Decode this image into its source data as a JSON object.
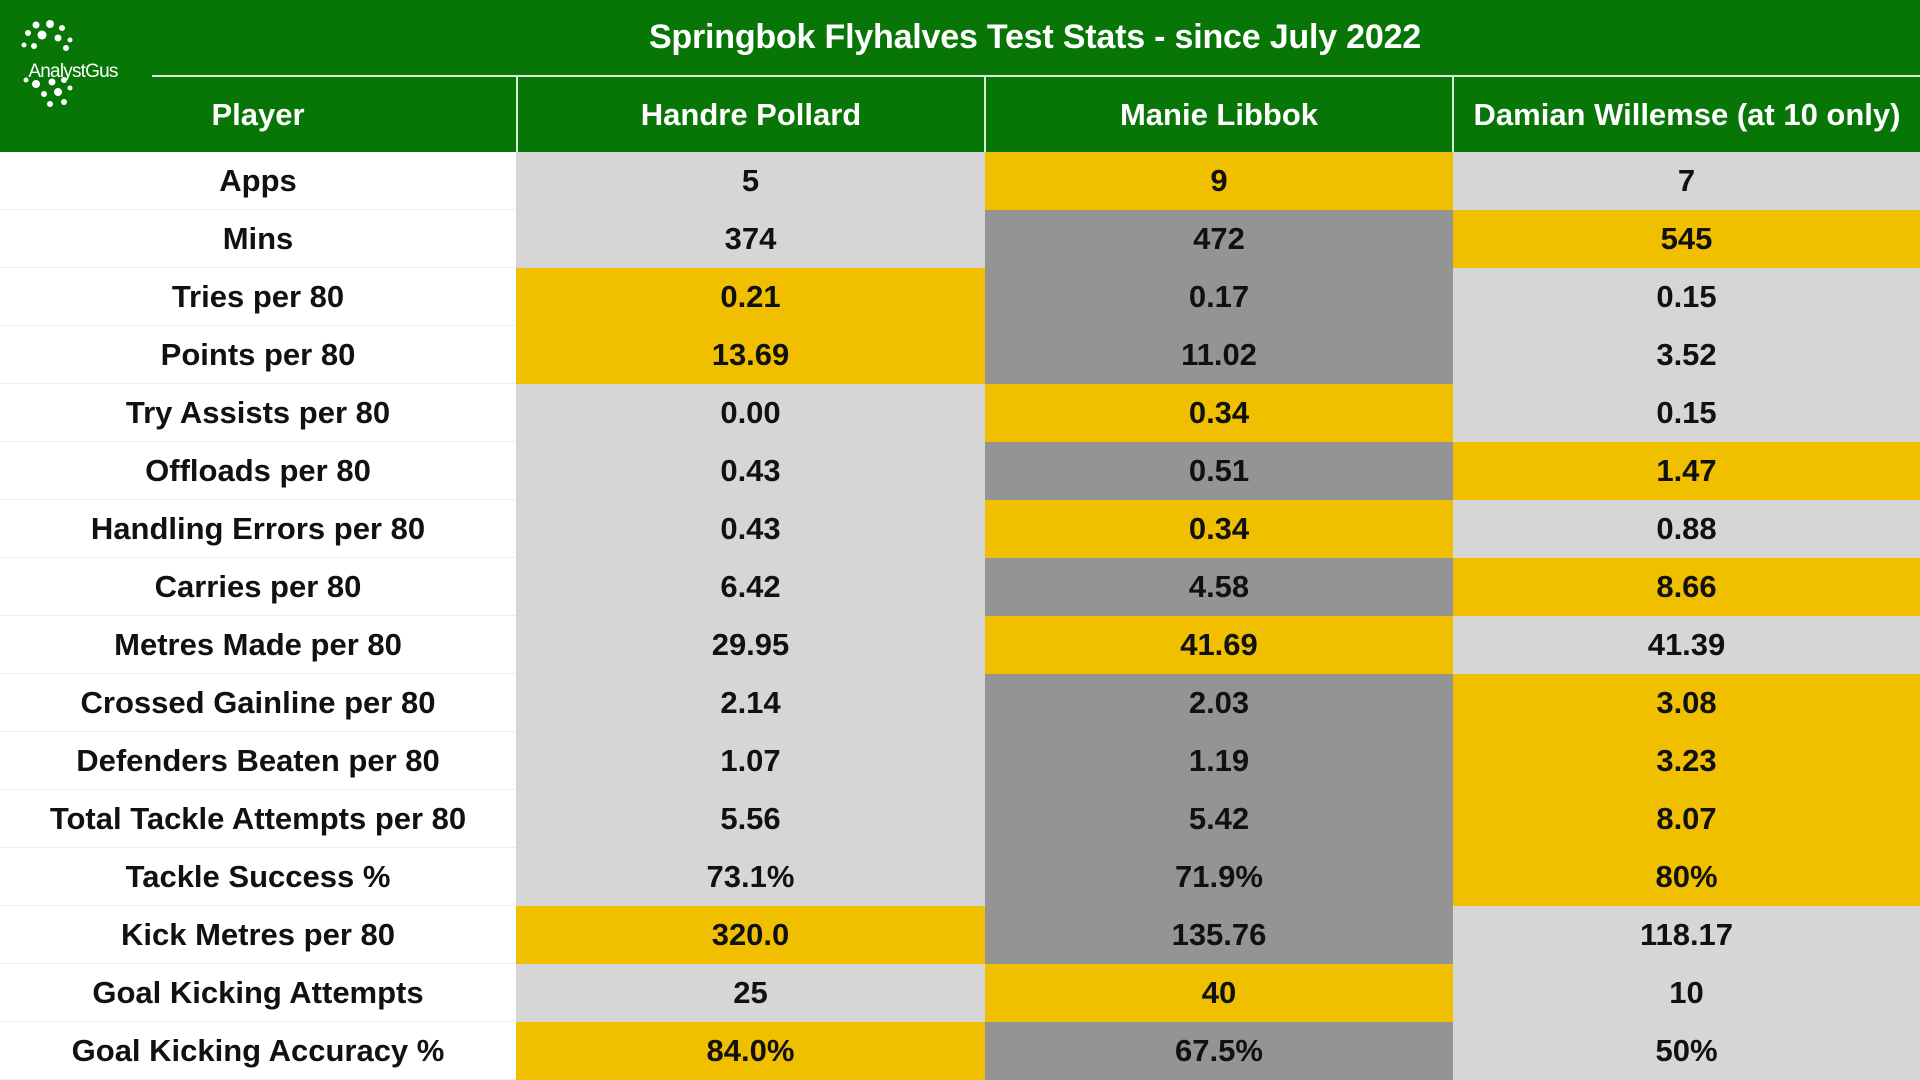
{
  "title": "Springbok Flyhalves Test Stats - since July 2022",
  "logo": {
    "text": "AnalystGus",
    "icon": "network-dots-icon"
  },
  "colors": {
    "header_bg": "#077607",
    "best": "#efbf00",
    "middle": "#d6d6d6",
    "lowest": "#949494",
    "text": "#111111"
  },
  "columns": {
    "label_header": "Player",
    "players": [
      "Handre Pollard",
      "Manie Libbok",
      "Damian Willemse (at 10 only)"
    ]
  },
  "chart_data": {
    "type": "table",
    "title": "Springbok Flyhalves Test Stats - since July 2022",
    "columns": [
      "Handre Pollard",
      "Manie Libbok",
      "Damian Willemse (at 10 only)"
    ],
    "rows": [
      {
        "label": "Apps",
        "values": [
          "5",
          "9",
          "7"
        ],
        "levels": [
          "mid",
          "high",
          "mid"
        ]
      },
      {
        "label": "Mins",
        "values": [
          "374",
          "472",
          "545"
        ],
        "levels": [
          "mid",
          "low",
          "high"
        ]
      },
      {
        "label": "Tries per 80",
        "values": [
          "0.21",
          "0.17",
          "0.15"
        ],
        "levels": [
          "high",
          "low",
          "mid"
        ]
      },
      {
        "label": "Points per 80",
        "values": [
          "13.69",
          "11.02",
          "3.52"
        ],
        "levels": [
          "high",
          "low",
          "mid"
        ]
      },
      {
        "label": "Try Assists per 80",
        "values": [
          "0.00",
          "0.34",
          "0.15"
        ],
        "levels": [
          "mid",
          "high",
          "mid"
        ]
      },
      {
        "label": "Offloads per 80",
        "values": [
          "0.43",
          "0.51",
          "1.47"
        ],
        "levels": [
          "mid",
          "low",
          "high"
        ]
      },
      {
        "label": "Handling Errors per 80",
        "values": [
          "0.43",
          "0.34",
          "0.88"
        ],
        "levels": [
          "mid",
          "high",
          "mid"
        ]
      },
      {
        "label": "Carries per 80",
        "values": [
          "6.42",
          "4.58",
          "8.66"
        ],
        "levels": [
          "mid",
          "low",
          "high"
        ]
      },
      {
        "label": "Metres Made per 80",
        "values": [
          "29.95",
          "41.69",
          "41.39"
        ],
        "levels": [
          "mid",
          "high",
          "mid"
        ]
      },
      {
        "label": "Crossed Gainline per 80",
        "values": [
          "2.14",
          "2.03",
          "3.08"
        ],
        "levels": [
          "mid",
          "low",
          "high"
        ]
      },
      {
        "label": "Defenders Beaten per 80",
        "values": [
          "1.07",
          "1.19",
          "3.23"
        ],
        "levels": [
          "mid",
          "low",
          "high"
        ]
      },
      {
        "label": "Total Tackle Attempts per 80",
        "values": [
          "5.56",
          "5.42",
          "8.07"
        ],
        "levels": [
          "mid",
          "low",
          "high"
        ]
      },
      {
        "label": "Tackle Success %",
        "values": [
          "73.1%",
          "71.9%",
          "80%"
        ],
        "levels": [
          "mid",
          "low",
          "high"
        ]
      },
      {
        "label": "Kick Metres per 80",
        "values": [
          "320.0",
          "135.76",
          "118.17"
        ],
        "levels": [
          "high",
          "low",
          "mid"
        ]
      },
      {
        "label": "Goal Kicking Attempts",
        "values": [
          "25",
          "40",
          "10"
        ],
        "levels": [
          "mid",
          "high",
          "mid"
        ]
      },
      {
        "label": "Goal Kicking Accuracy %",
        "values": [
          "84.0%",
          "67.5%",
          "50%"
        ],
        "levels": [
          "high",
          "low",
          "mid"
        ]
      }
    ]
  }
}
